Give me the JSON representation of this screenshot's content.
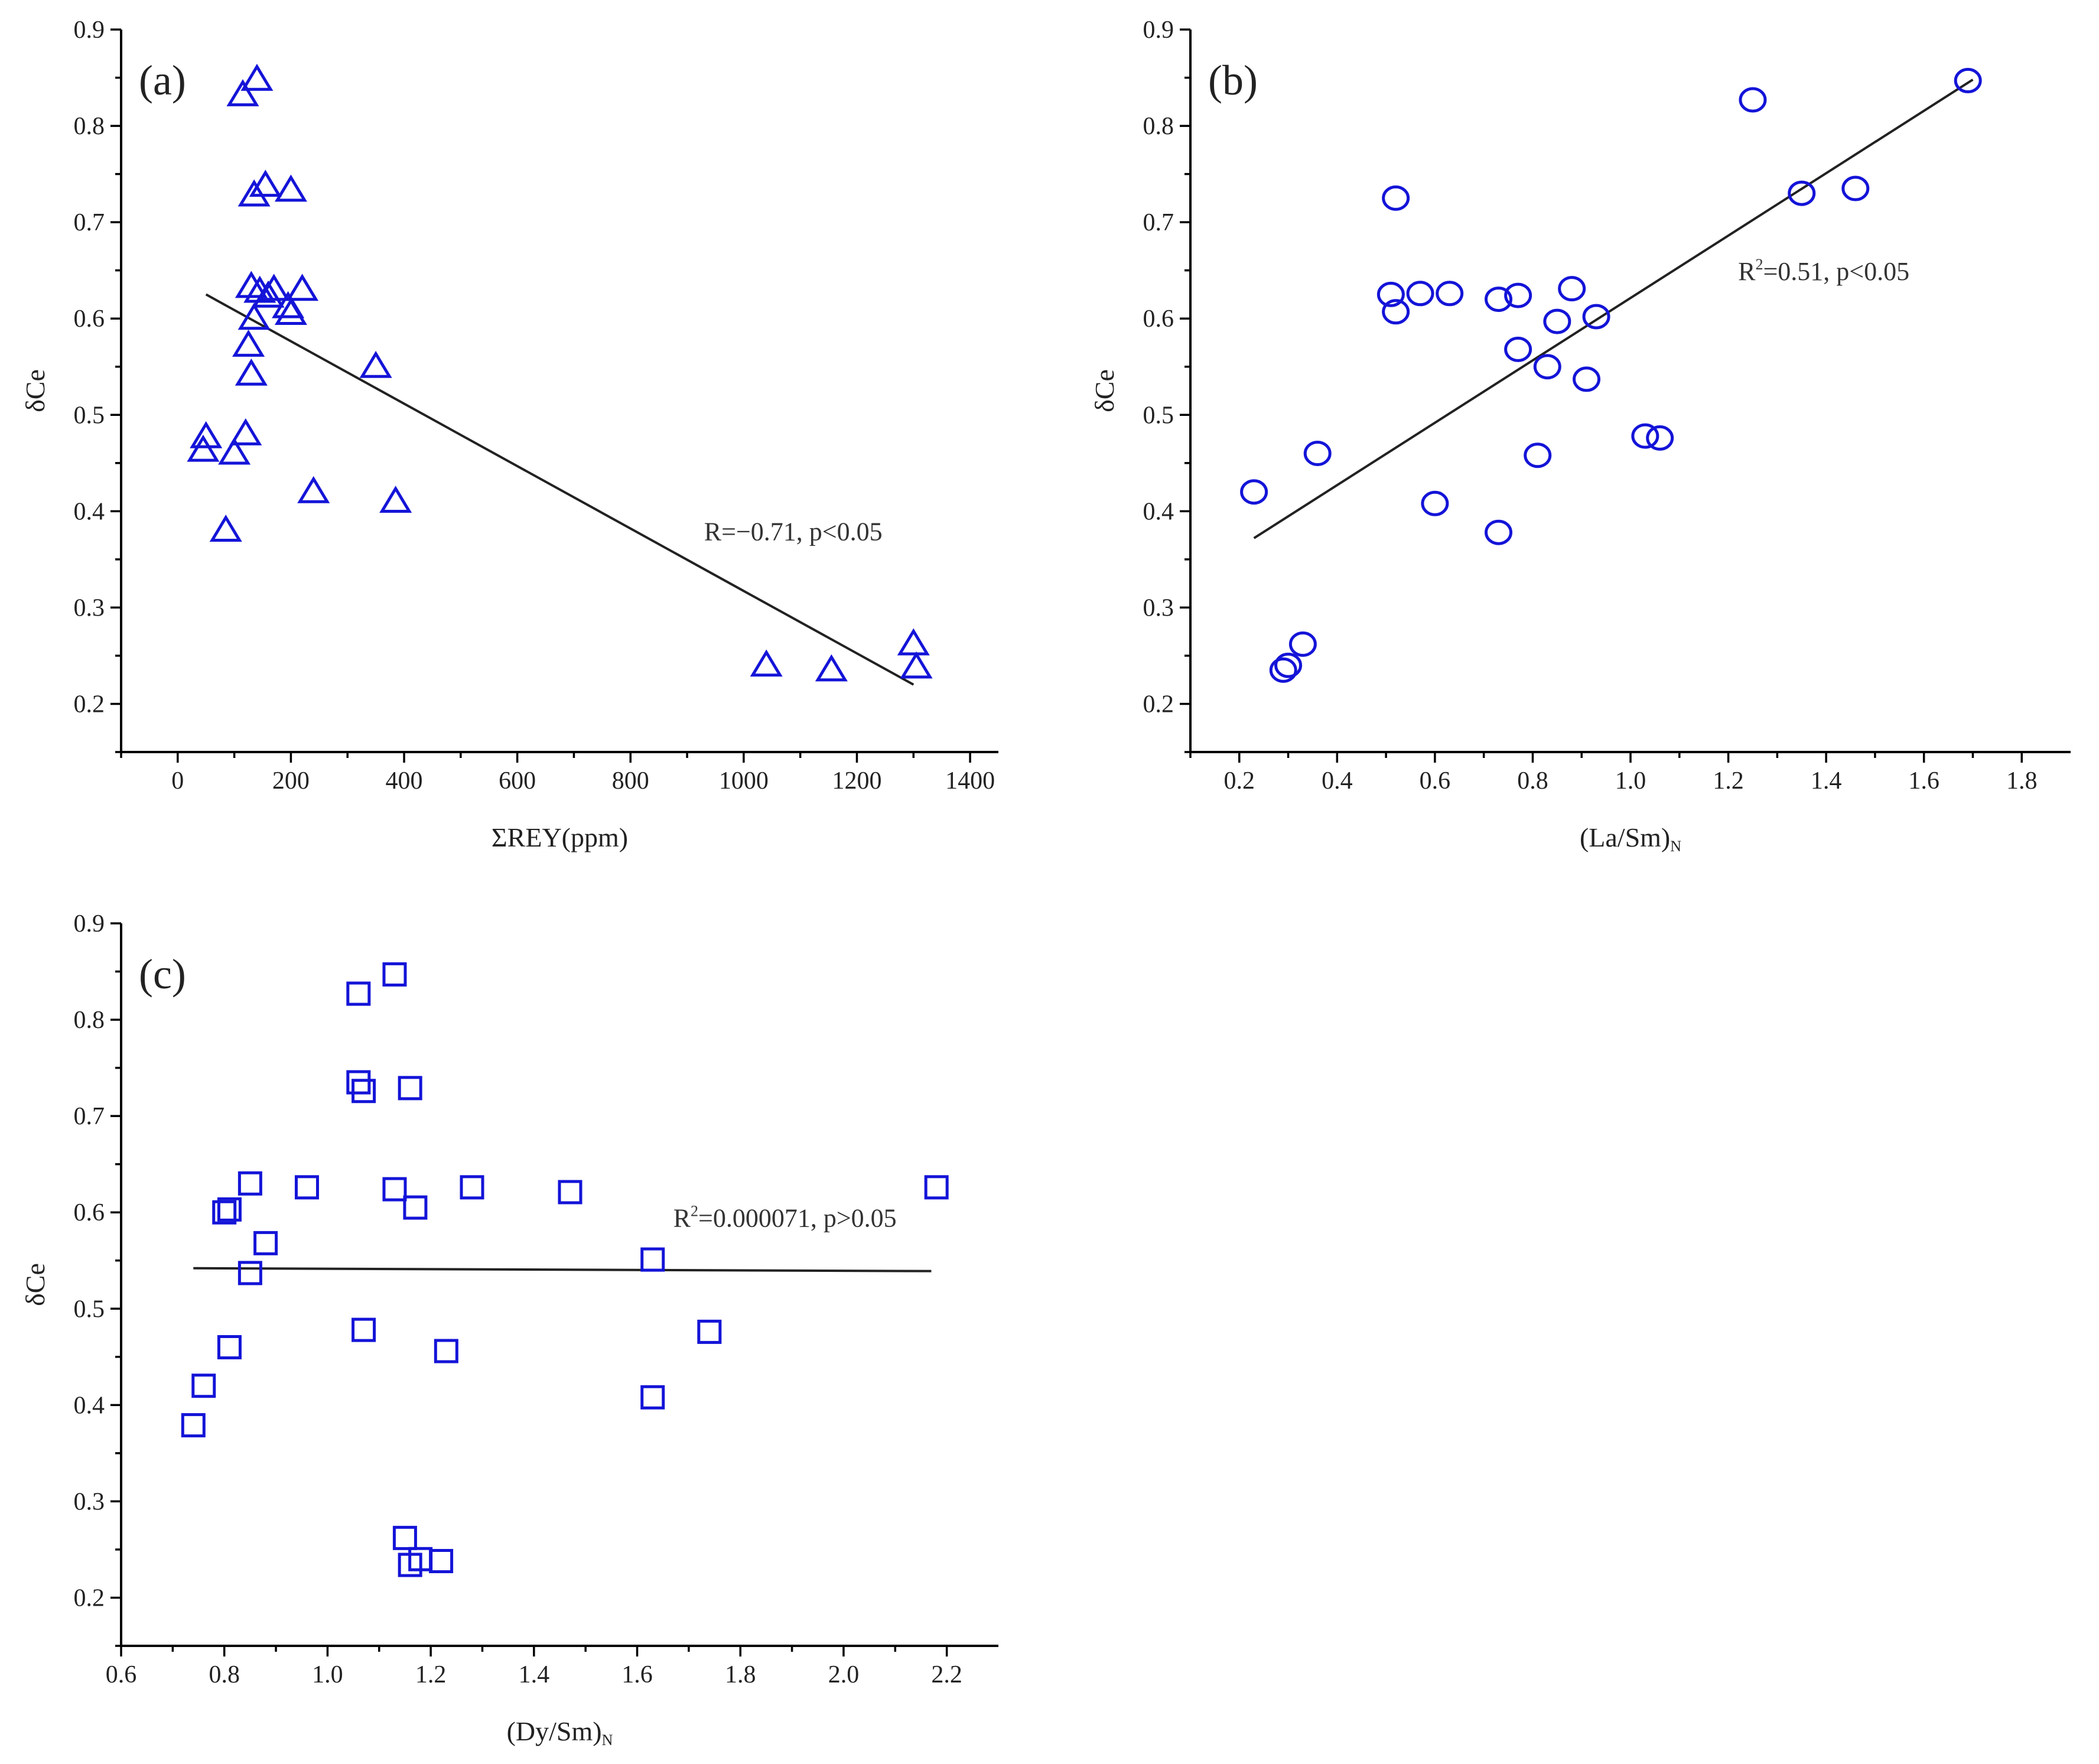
{
  "chart_data": [
    {
      "panel": "(a)",
      "type": "scatter",
      "marker": "triangle",
      "color": "#1414d8",
      "xlabel_main": "ΣREY(ppm)",
      "xlabel_sub": "",
      "ylabel": "δCe",
      "xlim": [
        -100,
        1450
      ],
      "ylim": [
        0.15,
        0.9
      ],
      "xticks": [
        0,
        200,
        400,
        600,
        800,
        1000,
        1200,
        1400
      ],
      "xtick_labels": [
        "0",
        "200",
        "400",
        "600",
        "800",
        "1000",
        "1200",
        "1400"
      ],
      "yticks": [
        0.2,
        0.3,
        0.4,
        0.5,
        0.6,
        0.7,
        0.8,
        0.9
      ],
      "ytick_labels": [
        "0.2",
        "0.3",
        "0.4",
        "0.5",
        "0.6",
        "0.7",
        "0.8",
        "0.9"
      ],
      "annotation_main": "R=−0.71, p<0.05",
      "annotation_sup": "",
      "annotation_rest": "",
      "annotation_pos": [
        930,
        0.37
      ],
      "fit": [
        [
          50,
          0.625
        ],
        [
          1300,
          0.22
        ]
      ],
      "points": [
        [
          140,
          0.848
        ],
        [
          115,
          0.832
        ],
        [
          155,
          0.738
        ],
        [
          200,
          0.733
        ],
        [
          135,
          0.728
        ],
        [
          130,
          0.633
        ],
        [
          145,
          0.628
        ],
        [
          170,
          0.63
        ],
        [
          220,
          0.63
        ],
        [
          160,
          0.623
        ],
        [
          195,
          0.612
        ],
        [
          200,
          0.605
        ],
        [
          135,
          0.6
        ],
        [
          125,
          0.572
        ],
        [
          130,
          0.542
        ],
        [
          350,
          0.55
        ],
        [
          50,
          0.477
        ],
        [
          120,
          0.48
        ],
        [
          45,
          0.463
        ],
        [
          100,
          0.46
        ],
        [
          240,
          0.42
        ],
        [
          385,
          0.41
        ],
        [
          85,
          0.38
        ],
        [
          1040,
          0.24
        ],
        [
          1155,
          0.235
        ],
        [
          1300,
          0.262
        ],
        [
          1305,
          0.238
        ]
      ]
    },
    {
      "panel": "(b)",
      "type": "scatter",
      "marker": "circle",
      "color": "#1414d8",
      "xlabel_main": "(La/Sm)",
      "xlabel_sub": "N",
      "ylabel": "δCe",
      "xlim": [
        0.1,
        1.9
      ],
      "ylim": [
        0.15,
        0.9
      ],
      "xticks": [
        0.2,
        0.4,
        0.6,
        0.8,
        1.0,
        1.2,
        1.4,
        1.6,
        1.8
      ],
      "xtick_labels": [
        "0.2",
        "0.4",
        "0.6",
        "0.8",
        "1.0",
        "1.2",
        "1.4",
        "1.6",
        "1.8"
      ],
      "yticks": [
        0.2,
        0.3,
        0.4,
        0.5,
        0.6,
        0.7,
        0.8,
        0.9
      ],
      "ytick_labels": [
        "0.2",
        "0.3",
        "0.4",
        "0.5",
        "0.6",
        "0.7",
        "0.8",
        "0.9"
      ],
      "annotation_main": "R",
      "annotation_sup": "2",
      "annotation_rest": "=0.51, p<0.05",
      "annotation_pos": [
        1.22,
        0.64
      ],
      "fit": [
        [
          0.23,
          0.372
        ],
        [
          1.7,
          0.848
        ]
      ],
      "points": [
        [
          1.69,
          0.847
        ],
        [
          1.25,
          0.827
        ],
        [
          1.35,
          0.73
        ],
        [
          1.46,
          0.735
        ],
        [
          0.52,
          0.725
        ],
        [
          0.51,
          0.625
        ],
        [
          0.57,
          0.626
        ],
        [
          0.63,
          0.626
        ],
        [
          0.52,
          0.607
        ],
        [
          0.73,
          0.62
        ],
        [
          0.77,
          0.624
        ],
        [
          0.88,
          0.631
        ],
        [
          0.85,
          0.597
        ],
        [
          0.93,
          0.602
        ],
        [
          0.77,
          0.568
        ],
        [
          0.83,
          0.55
        ],
        [
          0.91,
          0.537
        ],
        [
          0.36,
          0.46
        ],
        [
          1.03,
          0.478
        ],
        [
          1.06,
          0.476
        ],
        [
          0.81,
          0.458
        ],
        [
          0.23,
          0.42
        ],
        [
          0.6,
          0.408
        ],
        [
          0.73,
          0.378
        ],
        [
          0.33,
          0.262
        ],
        [
          0.3,
          0.24
        ],
        [
          0.29,
          0.235
        ]
      ]
    },
    {
      "panel": "(c)",
      "type": "scatter",
      "marker": "square",
      "color": "#1414d8",
      "xlabel_main": "(Dy/Sm)",
      "xlabel_sub": "N",
      "ylabel": "δCe",
      "xlim": [
        0.6,
        2.3
      ],
      "ylim": [
        0.15,
        0.9
      ],
      "xticks": [
        0.6,
        0.8,
        1.0,
        1.2,
        1.4,
        1.6,
        1.8,
        2.0,
        2.2
      ],
      "xtick_labels": [
        "0.6",
        "0.8",
        "1.0",
        "1.2",
        "1.4",
        "1.6",
        "1.8",
        "2.0",
        "2.2"
      ],
      "yticks": [
        0.2,
        0.3,
        0.4,
        0.5,
        0.6,
        0.7,
        0.8,
        0.9
      ],
      "ytick_labels": [
        "0.2",
        "0.3",
        "0.4",
        "0.5",
        "0.6",
        "0.7",
        "0.8",
        "0.9"
      ],
      "annotation_main": "R",
      "annotation_sup": "2",
      "annotation_rest": "=0.000071, p>0.05",
      "annotation_pos": [
        1.67,
        0.585
      ],
      "fit": [
        [
          0.74,
          0.542
        ],
        [
          2.17,
          0.539
        ]
      ],
      "points": [
        [
          1.13,
          0.847
        ],
        [
          1.06,
          0.827
        ],
        [
          1.06,
          0.735
        ],
        [
          1.07,
          0.726
        ],
        [
          1.16,
          0.729
        ],
        [
          0.85,
          0.63
        ],
        [
          0.96,
          0.626
        ],
        [
          1.13,
          0.624
        ],
        [
          1.28,
          0.626
        ],
        [
          1.47,
          0.621
        ],
        [
          2.18,
          0.626
        ],
        [
          0.8,
          0.6
        ],
        [
          0.81,
          0.603
        ],
        [
          1.17,
          0.605
        ],
        [
          0.88,
          0.568
        ],
        [
          1.63,
          0.551
        ],
        [
          0.85,
          0.537
        ],
        [
          1.07,
          0.478
        ],
        [
          1.74,
          0.476
        ],
        [
          0.81,
          0.46
        ],
        [
          1.23,
          0.456
        ],
        [
          0.76,
          0.42
        ],
        [
          1.63,
          0.408
        ],
        [
          0.74,
          0.379
        ],
        [
          1.15,
          0.262
        ],
        [
          1.18,
          0.24
        ],
        [
          1.22,
          0.238
        ],
        [
          1.16,
          0.234
        ]
      ]
    }
  ]
}
